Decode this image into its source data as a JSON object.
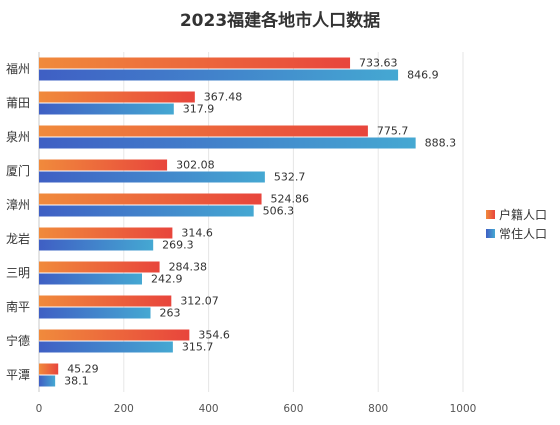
{
  "chart_data": {
    "type": "bar",
    "orientation": "horizontal",
    "title": "2023福建各地市人口数据",
    "categories": [
      "福州",
      "莆田",
      "泉州",
      "厦门",
      "漳州",
      "龙岩",
      "三明",
      "南平",
      "宁德",
      "平潭"
    ],
    "series": [
      {
        "name": "户籍人口",
        "color": "#e8453c",
        "color_start": "#f08a3c",
        "values": [
          733.63,
          367.48,
          775.7,
          302.08,
          524.86,
          314.6,
          284.38,
          312.07,
          354.6,
          45.29
        ],
        "value_labels": [
          "733.63",
          "367.48",
          "775.7",
          "302.08",
          "524.86",
          "314.6",
          "284.38",
          "312.07",
          "354.6",
          "45.29"
        ]
      },
      {
        "name": "常住人口",
        "color": "#45a8d2",
        "color_start": "#3f5fc4",
        "values": [
          846.9,
          317.9,
          888.3,
          532.7,
          506.3,
          269.3,
          242.9,
          263,
          315.7,
          38.1
        ],
        "value_labels": [
          "846.9",
          "317.9",
          "888.3",
          "532.7",
          "506.3",
          "269.3",
          "242.9",
          "263",
          "315.7",
          "38.1"
        ]
      }
    ],
    "xlim": [
      0,
      1000
    ],
    "xticks": [
      "0",
      "200",
      "400",
      "600",
      "800",
      "1000"
    ],
    "grid": true,
    "legend_position": "right"
  }
}
